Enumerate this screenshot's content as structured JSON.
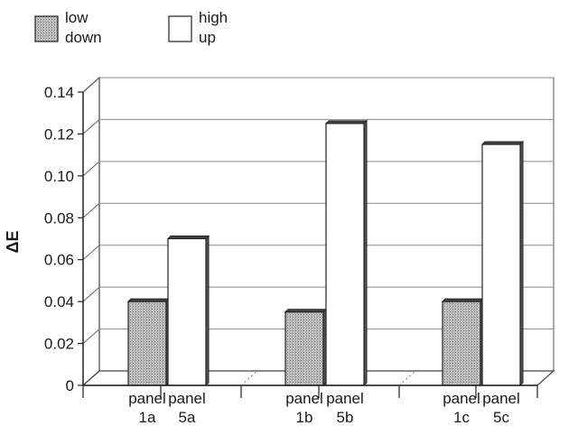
{
  "chart_data": {
    "type": "bar",
    "title": "",
    "ylabel": "ΔE",
    "ylim": [
      0,
      0.14
    ],
    "yticks": [
      "0",
      "0.02",
      "0.04",
      "0.06",
      "0.08",
      "0.10",
      "0.12",
      "0.14"
    ],
    "grid": true,
    "three_d": true,
    "legend_position": "top-left",
    "series": [
      {
        "name": "low\ndown",
        "legend_lines": [
          "low",
          "down"
        ],
        "fill": "#b9b9b9",
        "pattern": "stipple"
      },
      {
        "name": "high\nup",
        "legend_lines": [
          "high",
          "up"
        ],
        "fill": "#ffffff",
        "pattern": "none"
      }
    ],
    "bars": [
      {
        "series": 0,
        "value": 0.04,
        "label_lines": [
          "panel",
          "1a"
        ]
      },
      {
        "series": 1,
        "value": 0.07,
        "label_lines": [
          "panel",
          "5a"
        ]
      },
      {
        "series": 0,
        "value": 0.035,
        "label_lines": [
          "panel",
          "1b"
        ]
      },
      {
        "series": 1,
        "value": 0.125,
        "label_lines": [
          "panel",
          "5b"
        ]
      },
      {
        "series": 0,
        "value": 0.04,
        "label_lines": [
          "panel",
          "1c"
        ]
      },
      {
        "series": 1,
        "value": 0.115,
        "label_lines": [
          "panel",
          "5c"
        ]
      }
    ]
  }
}
